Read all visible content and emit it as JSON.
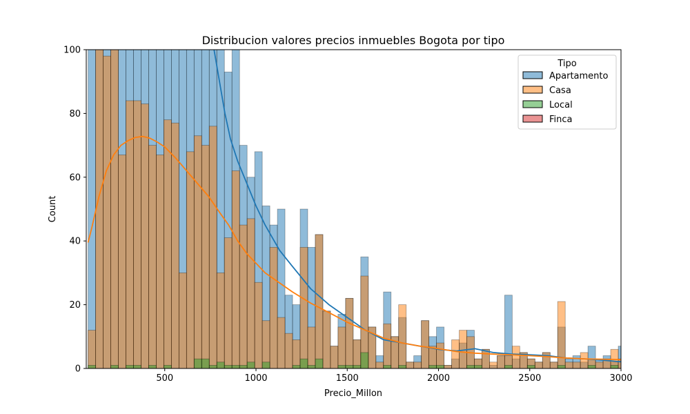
{
  "chart_data": {
    "type": "bar",
    "title": "Distribucion valores precios inmuebles Bogota por tipo",
    "xlabel": "Precio_Millon",
    "ylabel": "Count",
    "xlim": [
      70,
      3000
    ],
    "ylim": [
      0,
      100
    ],
    "xticks": [
      500,
      1000,
      1500,
      2000,
      2500,
      3000
    ],
    "yticks": [
      0,
      20,
      40,
      60,
      80,
      100
    ],
    "bin_start": 80,
    "bin_width": 41.5,
    "grid": false,
    "legend": {
      "title": "Tipo",
      "position": "top-right",
      "entries": [
        "Apartamento",
        "Casa",
        "Local",
        "Finca"
      ]
    },
    "series": [
      {
        "name": "Apartamento",
        "color": "#1f77b4",
        "values": [
          100,
          100,
          100,
          100,
          100,
          100,
          100,
          100,
          100,
          100,
          100,
          100,
          100,
          100,
          100,
          100,
          100,
          100,
          93,
          100,
          70,
          60,
          68,
          51,
          45,
          50,
          23,
          20,
          50,
          38,
          42,
          18,
          7,
          17,
          22,
          9,
          35,
          13,
          4,
          24,
          10,
          16,
          2,
          4,
          15,
          10,
          13,
          1,
          3,
          8,
          12,
          3,
          6,
          1,
          4,
          23,
          3,
          5,
          3,
          2,
          5,
          2,
          13,
          3,
          4,
          2,
          7,
          3,
          4,
          2,
          7,
          2,
          3,
          2
        ]
      },
      {
        "name": "Casa",
        "color": "#ff7f0e",
        "values": [
          12,
          100,
          98,
          100,
          67,
          84,
          84,
          83,
          70,
          67,
          78,
          77,
          30,
          68,
          73,
          70,
          76,
          30,
          41,
          62,
          45,
          47,
          27,
          15,
          38,
          16,
          11,
          9,
          38,
          13,
          42,
          18,
          7,
          13,
          22,
          9,
          29,
          13,
          2,
          14,
          10,
          20,
          2,
          2,
          15,
          7,
          8,
          1,
          9,
          12,
          10,
          3,
          6,
          2,
          4,
          4,
          7,
          5,
          3,
          2,
          5,
          2,
          21,
          2,
          2,
          5,
          3,
          2,
          3,
          6,
          3,
          5,
          3,
          11
        ]
      },
      {
        "name": "Local",
        "color": "#2ca02c",
        "values": [
          1,
          0,
          0,
          1,
          0,
          1,
          1,
          0,
          1,
          0,
          1,
          0,
          0,
          0,
          3,
          3,
          1,
          2,
          1,
          1,
          1,
          2,
          0,
          2,
          0,
          0,
          0,
          1,
          3,
          1,
          3,
          0,
          0,
          1,
          1,
          1,
          5,
          0,
          0,
          1,
          0,
          1,
          0,
          0,
          0,
          1,
          1,
          0,
          0,
          0,
          1,
          1,
          0,
          0,
          0,
          1,
          0,
          0,
          1,
          0,
          0,
          0,
          1,
          0,
          0,
          0,
          1,
          0,
          0,
          1,
          0,
          0,
          0,
          1
        ]
      },
      {
        "name": "Finca",
        "color": "#d62728",
        "values": []
      }
    ],
    "kde": [
      {
        "name": "Apartamento",
        "color": "#1f77b4",
        "x": [
          770,
          800,
          830,
          860,
          900,
          950,
          1000,
          1050,
          1100,
          1130,
          1200,
          1300,
          1400,
          1500,
          1600,
          1700,
          1800,
          1900,
          2000,
          2100,
          2200,
          2300,
          2400,
          2500,
          2600,
          2700,
          2800,
          2900,
          3000
        ],
        "y": [
          100,
          90,
          80,
          72,
          65,
          58,
          51,
          45,
          40,
          37,
          32,
          25,
          20,
          16,
          12,
          9,
          8,
          7,
          6,
          5.5,
          6.2,
          5,
          4.5,
          4.3,
          4,
          3.3,
          3,
          2.6,
          2.1
        ]
      },
      {
        "name": "Casa",
        "color": "#ff7f0e",
        "x": [
          80,
          100,
          140,
          180,
          220,
          260,
          300,
          340,
          380,
          420,
          460,
          500,
          560,
          620,
          680,
          740,
          800,
          850,
          900,
          950,
          1000,
          1050,
          1100,
          1150,
          1200,
          1300,
          1400,
          1500,
          1600,
          1700,
          1800,
          1900,
          2000,
          2100,
          2200,
          2300,
          2400,
          2500,
          2600,
          2700,
          2800,
          2900,
          3000
        ],
        "y": [
          39.5,
          44,
          54,
          62,
          67,
          70,
          71.5,
          72.5,
          72.8,
          72.2,
          71,
          69.5,
          66,
          62,
          58,
          54,
          49,
          45,
          40,
          36,
          33,
          30,
          28,
          26,
          24,
          20.5,
          17.5,
          14.5,
          12,
          9.5,
          8,
          7,
          6.2,
          5.3,
          4.8,
          4.5,
          4.3,
          4,
          3.7,
          3.3,
          3,
          2.9,
          2.8
        ]
      }
    ]
  }
}
